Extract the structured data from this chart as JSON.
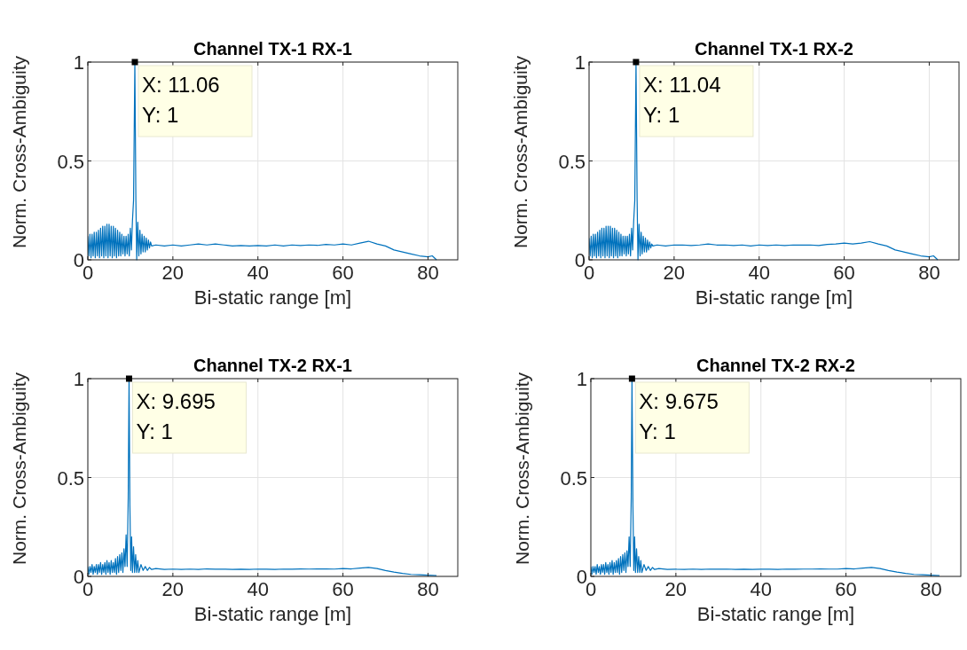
{
  "chart_data": [
    {
      "type": "line",
      "title": "Channel TX-1 RX-1",
      "xlabel": "Bi-static range [m]",
      "ylabel": "Norm. Cross-Ambiguity",
      "x": [
        0,
        0.25,
        0.5,
        0.75,
        1,
        1.25,
        1.5,
        1.75,
        2,
        2.25,
        2.5,
        2.75,
        3,
        3.25,
        3.5,
        3.75,
        4,
        4.25,
        4.5,
        4.75,
        5,
        5.25,
        5.5,
        5.75,
        6,
        6.25,
        6.5,
        6.75,
        7,
        7.25,
        7.5,
        7.75,
        8,
        8.25,
        8.5,
        8.75,
        9,
        9.25,
        9.5,
        9.75,
        10,
        10.25,
        10.5,
        10.75,
        11.06,
        11.3,
        11.5,
        11.75,
        12,
        12.25,
        12.5,
        12.75,
        13,
        13.25,
        13.5,
        13.75,
        14,
        14.25,
        14.5,
        14.75,
        15,
        16,
        18,
        20,
        22,
        24,
        26,
        28,
        30,
        32,
        34,
        36,
        38,
        40,
        42,
        44,
        46,
        48,
        50,
        52,
        54,
        56,
        58,
        60,
        62,
        64,
        66,
        68,
        70,
        72,
        74,
        76,
        78,
        80,
        81,
        82
      ],
      "series": [
        {
          "color": "#0072bd",
          "values": [
            0.12,
            0.02,
            0.13,
            0.01,
            0.13,
            0.02,
            0.14,
            0.01,
            0.14,
            0.02,
            0.15,
            0.01,
            0.16,
            0.02,
            0.17,
            0.01,
            0.17,
            0.02,
            0.18,
            0.01,
            0.18,
            0.02,
            0.17,
            0.01,
            0.17,
            0.02,
            0.16,
            0.01,
            0.15,
            0.02,
            0.14,
            0.02,
            0.13,
            0.03,
            0.12,
            0.02,
            0.12,
            0.03,
            0.13,
            0.02,
            0.16,
            0.05,
            0.2,
            0.3,
            1,
            0.3,
            0,
            0.19,
            0.02,
            0.15,
            0.03,
            0.13,
            0.04,
            0.12,
            0.04,
            0.11,
            0.05,
            0.1,
            0.06,
            0.09,
            0.07,
            0.075,
            0.07,
            0.075,
            0.07,
            0.075,
            0.08,
            0.075,
            0.08,
            0.075,
            0.07,
            0.072,
            0.07,
            0.072,
            0.07,
            0.075,
            0.07,
            0.075,
            0.072,
            0.075,
            0.073,
            0.078,
            0.075,
            0.08,
            0.075,
            0.085,
            0.094,
            0.08,
            0.07,
            0.05,
            0.04,
            0.03,
            0.02,
            0.015,
            0.02,
            0
          ]
        }
      ],
      "xlim": [
        0,
        87
      ],
      "ylim": [
        0,
        1
      ],
      "xticks": [
        0,
        20,
        40,
        60,
        80
      ],
      "yticks": [
        0,
        0.5,
        1
      ],
      "grid": true,
      "annotations": [
        {
          "text": "X: 11.06\nY: 1",
          "x": 11.06,
          "y": 1
        }
      ]
    },
    {
      "type": "line",
      "title": "Channel TX-1 RX-2",
      "xlabel": "Bi-static range [m]",
      "ylabel": "Norm. Cross-Ambiguity",
      "x": [
        0,
        0.25,
        0.5,
        0.75,
        1,
        1.25,
        1.5,
        1.75,
        2,
        2.25,
        2.5,
        2.75,
        3,
        3.25,
        3.5,
        3.75,
        4,
        4.25,
        4.5,
        4.75,
        5,
        5.25,
        5.5,
        5.75,
        6,
        6.25,
        6.5,
        6.75,
        7,
        7.25,
        7.5,
        7.75,
        8,
        8.25,
        8.5,
        8.75,
        9,
        9.25,
        9.5,
        9.75,
        10,
        10.25,
        10.5,
        10.75,
        11.04,
        11.3,
        11.5,
        11.75,
        12,
        12.25,
        12.5,
        12.75,
        13,
        13.25,
        13.5,
        13.75,
        14,
        14.25,
        14.5,
        14.75,
        15,
        16,
        18,
        20,
        22,
        24,
        26,
        28,
        30,
        32,
        34,
        36,
        38,
        40,
        42,
        44,
        46,
        48,
        50,
        52,
        54,
        56,
        58,
        60,
        62,
        64,
        66,
        68,
        70,
        72,
        74,
        76,
        78,
        80,
        81,
        82
      ],
      "series": [
        {
          "color": "#0072bd",
          "values": [
            0.11,
            0.02,
            0.12,
            0.01,
            0.13,
            0.02,
            0.13,
            0.01,
            0.14,
            0.02,
            0.15,
            0.01,
            0.16,
            0.02,
            0.16,
            0.01,
            0.17,
            0.02,
            0.17,
            0.01,
            0.17,
            0.02,
            0.16,
            0.01,
            0.16,
            0.02,
            0.15,
            0.01,
            0.14,
            0.02,
            0.13,
            0.02,
            0.12,
            0.03,
            0.12,
            0.02,
            0.12,
            0.03,
            0.13,
            0.02,
            0.16,
            0.05,
            0.2,
            0.3,
            1,
            0.3,
            0,
            0.18,
            0.02,
            0.14,
            0.03,
            0.12,
            0.04,
            0.11,
            0.04,
            0.1,
            0.05,
            0.09,
            0.06,
            0.08,
            0.07,
            0.075,
            0.07,
            0.075,
            0.075,
            0.072,
            0.075,
            0.08,
            0.075,
            0.075,
            0.072,
            0.075,
            0.07,
            0.075,
            0.072,
            0.075,
            0.072,
            0.075,
            0.075,
            0.075,
            0.072,
            0.078,
            0.08,
            0.085,
            0.08,
            0.085,
            0.092,
            0.08,
            0.07,
            0.05,
            0.04,
            0.03,
            0.02,
            0.015,
            0.02,
            0
          ]
        }
      ],
      "xlim": [
        0,
        87
      ],
      "ylim": [
        0,
        1
      ],
      "xticks": [
        0,
        20,
        40,
        60,
        80
      ],
      "yticks": [
        0,
        0.5,
        1
      ],
      "grid": true,
      "annotations": [
        {
          "text": "X: 11.04\nY: 1",
          "x": 11.04,
          "y": 1
        }
      ]
    },
    {
      "type": "line",
      "title": "Channel TX-2 RX-1",
      "xlabel": "Bi-static range [m]",
      "ylabel": "Norm. Cross-Ambiguity",
      "x": [
        0,
        0.25,
        0.5,
        0.75,
        1,
        1.25,
        1.5,
        1.75,
        2,
        2.25,
        2.5,
        2.75,
        3,
        3.25,
        3.5,
        3.75,
        4,
        4.25,
        4.5,
        4.75,
        5,
        5.25,
        5.5,
        5.75,
        6,
        6.25,
        6.5,
        6.75,
        7,
        7.25,
        7.5,
        7.75,
        8,
        8.25,
        8.5,
        8.75,
        9,
        9.25,
        9.5,
        9.695,
        9.9,
        10.1,
        10.3,
        10.5,
        10.75,
        11,
        11.25,
        11.5,
        11.75,
        12,
        12.5,
        13,
        13.5,
        14,
        14.5,
        15,
        16,
        18,
        20,
        22,
        24,
        26,
        28,
        30,
        32,
        34,
        36,
        38,
        40,
        42,
        44,
        46,
        48,
        50,
        52,
        54,
        56,
        58,
        60,
        62,
        64,
        66,
        68,
        70,
        72,
        74,
        76,
        78,
        80,
        82
      ],
      "series": [
        {
          "color": "#0072bd",
          "values": [
            0.05,
            0.01,
            0.05,
            0.02,
            0.06,
            0.01,
            0.05,
            0.02,
            0.06,
            0.01,
            0.06,
            0.02,
            0.07,
            0.01,
            0.06,
            0.02,
            0.07,
            0.01,
            0.08,
            0.02,
            0.07,
            0.01,
            0.08,
            0.02,
            0.07,
            0.02,
            0.09,
            0.01,
            0.1,
            0.02,
            0.11,
            0.03,
            0.12,
            0.02,
            0.14,
            0.05,
            0.21,
            0.05,
            0.4,
            1,
            0.35,
            0.03,
            0.2,
            0.02,
            0.15,
            0.02,
            0.11,
            0.02,
            0.08,
            0.02,
            0.06,
            0.03,
            0.05,
            0.03,
            0.045,
            0.035,
            0.04,
            0.035,
            0.037,
            0.035,
            0.037,
            0.035,
            0.038,
            0.036,
            0.037,
            0.035,
            0.036,
            0.035,
            0.037,
            0.036,
            0.035,
            0.037,
            0.036,
            0.038,
            0.037,
            0.038,
            0.038,
            0.037,
            0.04,
            0.038,
            0.042,
            0.045,
            0.04,
            0.03,
            0.022,
            0.015,
            0.01,
            0.008,
            0.006,
            0.004
          ]
        }
      ],
      "xlim": [
        0,
        87
      ],
      "ylim": [
        0,
        1
      ],
      "xticks": [
        0,
        20,
        40,
        60,
        80
      ],
      "yticks": [
        0,
        0.5,
        1
      ],
      "grid": true,
      "annotations": [
        {
          "text": "X: 9.695\nY: 1",
          "x": 9.695,
          "y": 1
        }
      ]
    },
    {
      "type": "line",
      "title": "Channel TX-2 RX-2",
      "xlabel": "Bi-static range [m]",
      "ylabel": "Norm. Cross-Ambiguity",
      "x": [
        0,
        0.25,
        0.5,
        0.75,
        1,
        1.25,
        1.5,
        1.75,
        2,
        2.25,
        2.5,
        2.75,
        3,
        3.25,
        3.5,
        3.75,
        4,
        4.25,
        4.5,
        4.75,
        5,
        5.25,
        5.5,
        5.75,
        6,
        6.25,
        6.5,
        6.75,
        7,
        7.25,
        7.5,
        7.75,
        8,
        8.25,
        8.5,
        8.75,
        9,
        9.25,
        9.5,
        9.675,
        9.9,
        10.1,
        10.3,
        10.5,
        10.75,
        11,
        11.25,
        11.5,
        11.75,
        12,
        12.5,
        13,
        13.5,
        14,
        14.5,
        15,
        16,
        18,
        20,
        22,
        24,
        26,
        28,
        30,
        32,
        34,
        36,
        38,
        40,
        42,
        44,
        46,
        48,
        50,
        52,
        54,
        56,
        58,
        60,
        62,
        64,
        66,
        68,
        70,
        72,
        74,
        76,
        78,
        80,
        82
      ],
      "series": [
        {
          "color": "#0072bd",
          "values": [
            0.05,
            0.01,
            0.05,
            0.02,
            0.05,
            0.01,
            0.06,
            0.02,
            0.05,
            0.01,
            0.06,
            0.02,
            0.06,
            0.01,
            0.07,
            0.02,
            0.06,
            0.01,
            0.07,
            0.02,
            0.08,
            0.01,
            0.07,
            0.02,
            0.08,
            0.02,
            0.09,
            0.01,
            0.1,
            0.02,
            0.11,
            0.03,
            0.12,
            0.02,
            0.13,
            0.05,
            0.2,
            0.05,
            0.4,
            1,
            0.35,
            0.03,
            0.2,
            0.02,
            0.14,
            0.02,
            0.1,
            0.02,
            0.08,
            0.02,
            0.06,
            0.03,
            0.05,
            0.03,
            0.045,
            0.035,
            0.04,
            0.035,
            0.036,
            0.035,
            0.037,
            0.035,
            0.037,
            0.036,
            0.037,
            0.035,
            0.036,
            0.035,
            0.036,
            0.036,
            0.035,
            0.037,
            0.036,
            0.037,
            0.037,
            0.038,
            0.037,
            0.037,
            0.04,
            0.038,
            0.042,
            0.045,
            0.04,
            0.03,
            0.022,
            0.015,
            0.01,
            0.008,
            0.006,
            0.004
          ]
        }
      ],
      "xlim": [
        0,
        87
      ],
      "ylim": [
        0,
        1
      ],
      "xticks": [
        0,
        20,
        40,
        60,
        80
      ],
      "yticks": [
        0,
        0.5,
        1
      ],
      "grid": true,
      "annotations": [
        {
          "text": "X: 9.675\nY: 1",
          "x": 9.675,
          "y": 1
        }
      ]
    }
  ]
}
